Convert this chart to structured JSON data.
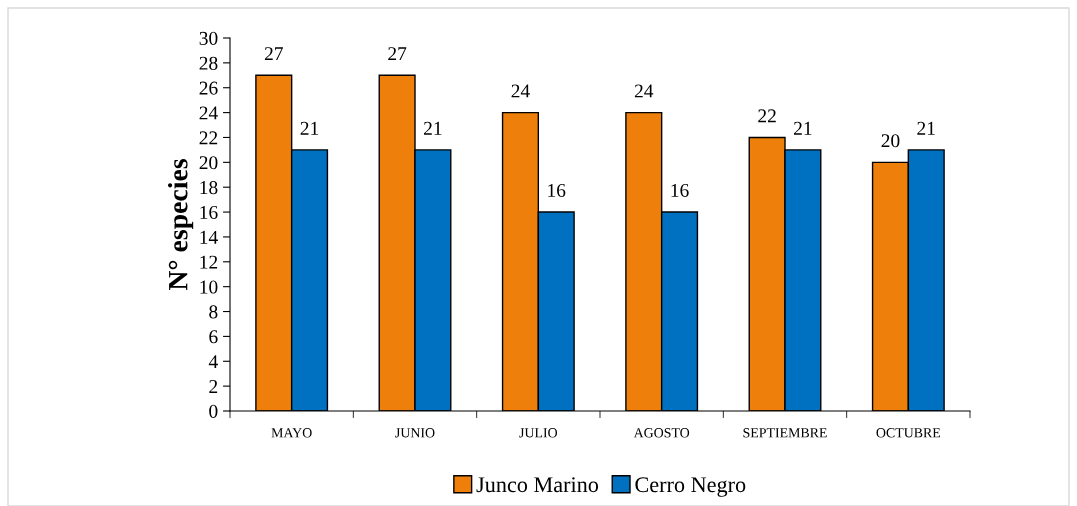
{
  "chart_data": {
    "type": "bar",
    "ylabel": "N° especies",
    "categories": [
      "MAYO",
      "JUNIO",
      "JULIO",
      "AGOSTO",
      "SEPTIEMBRE",
      "OCTUBRE"
    ],
    "series": [
      {
        "name": "Junco Marino",
        "color": "#ef7f0b",
        "values": [
          27,
          27,
          24,
          24,
          22,
          20
        ]
      },
      {
        "name": "Cerro Negro",
        "color": "#0070c0",
        "values": [
          21,
          21,
          16,
          16,
          21,
          21
        ]
      }
    ],
    "ylim": [
      0,
      30
    ],
    "yticks": [
      0,
      2,
      4,
      6,
      8,
      10,
      12,
      14,
      16,
      18,
      20,
      22,
      24,
      26,
      28,
      30
    ],
    "grid": false,
    "legend": "bottom",
    "data_labels": true
  }
}
